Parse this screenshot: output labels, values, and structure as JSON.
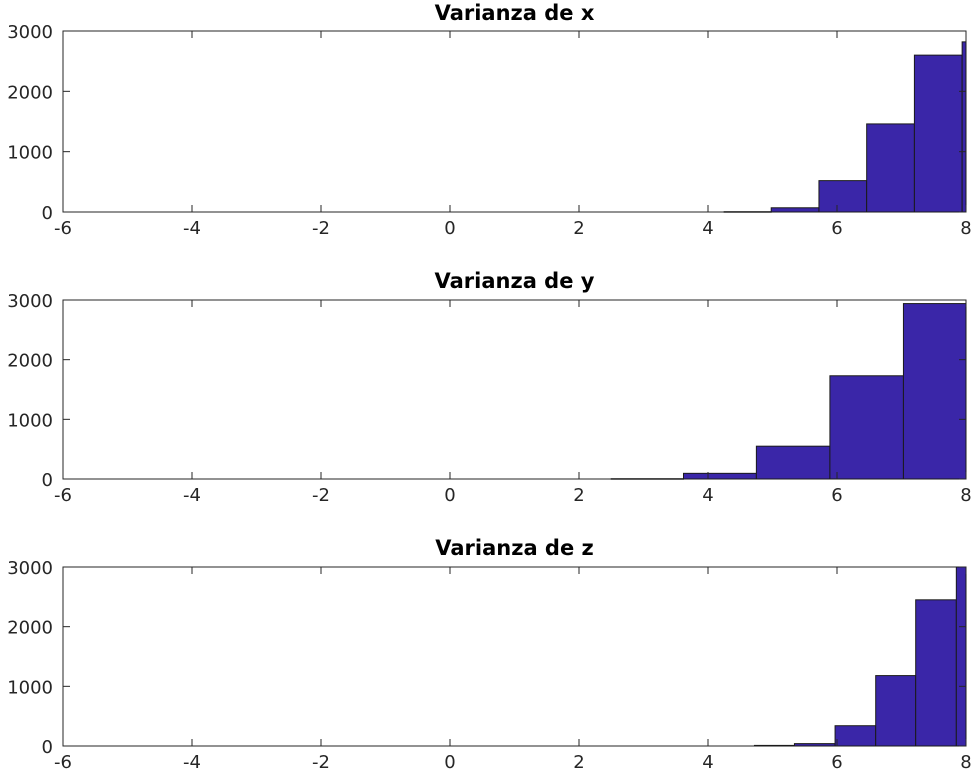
{
  "chart_data": [
    {
      "type": "bar",
      "title": "Varianza de x",
      "xlim": [
        -6,
        8
      ],
      "ylim": [
        0,
        3000
      ],
      "xticks": [
        "-6",
        "-4",
        "-2",
        "0",
        "2",
        "4",
        "6",
        "8"
      ],
      "yticks": [
        "0",
        "1000",
        "2000",
        "3000"
      ],
      "bar_color": "#3a26a8",
      "bins": [
        {
          "x0": 4.25,
          "x1": 4.98,
          "count": 5
        },
        {
          "x0": 4.98,
          "x1": 5.72,
          "count": 70
        },
        {
          "x0": 5.72,
          "x1": 6.46,
          "count": 520
        },
        {
          "x0": 6.46,
          "x1": 7.2,
          "count": 1460
        },
        {
          "x0": 7.2,
          "x1": 7.94,
          "count": 2600
        },
        {
          "x0": 7.94,
          "x1": 8.0,
          "count": 2820
        }
      ]
    },
    {
      "type": "bar",
      "title": "Varianza de y",
      "xlim": [
        -6,
        8
      ],
      "ylim": [
        0,
        3000
      ],
      "xticks": [
        "-6",
        "-4",
        "-2",
        "0",
        "2",
        "4",
        "6",
        "8"
      ],
      "yticks": [
        "0",
        "1000",
        "2000",
        "3000"
      ],
      "bar_color": "#3a26a8",
      "bins": [
        {
          "x0": 2.5,
          "x1": 3.62,
          "count": 5
        },
        {
          "x0": 3.62,
          "x1": 4.75,
          "count": 95
        },
        {
          "x0": 4.75,
          "x1": 5.89,
          "count": 550
        },
        {
          "x0": 5.89,
          "x1": 7.03,
          "count": 1730
        },
        {
          "x0": 7.03,
          "x1": 8.0,
          "count": 2940
        }
      ]
    },
    {
      "type": "bar",
      "title": "Varianza de z",
      "xlim": [
        -6,
        8
      ],
      "ylim": [
        0,
        3000
      ],
      "xticks": [
        "-6",
        "-4",
        "-2",
        "0",
        "2",
        "4",
        "6",
        "8"
      ],
      "yticks": [
        "0",
        "1000",
        "2000",
        "3000"
      ],
      "bar_color": "#3a26a8",
      "bins": [
        {
          "x0": 4.72,
          "x1": 5.34,
          "count": 10
        },
        {
          "x0": 5.34,
          "x1": 5.97,
          "count": 40
        },
        {
          "x0": 5.97,
          "x1": 6.6,
          "count": 340
        },
        {
          "x0": 6.6,
          "x1": 7.22,
          "count": 1180
        },
        {
          "x0": 7.22,
          "x1": 7.85,
          "count": 2450
        },
        {
          "x0": 7.85,
          "x1": 8.0,
          "count": 3000
        }
      ]
    }
  ]
}
